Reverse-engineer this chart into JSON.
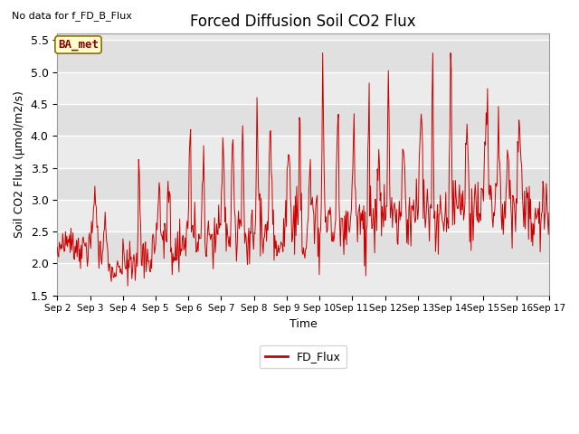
{
  "title": "Forced Diffusion Soil CO2 Flux",
  "ylabel": "Soil CO2 Flux (μmol/m2/s)",
  "xlabel": "Time",
  "no_data_label": "No data for f_FD_B_Flux",
  "site_label": "BA_met",
  "ylim": [
    1.5,
    5.6
  ],
  "legend_label": "FD_Flux",
  "line_color": "#cc0000",
  "bg_color": "#e8e8e8",
  "x_tick_labels": [
    "Sep 2",
    "Sep 3",
    "Sep 4",
    "Sep 5",
    "Sep 6",
    "Sep 7",
    "Sep 8",
    "Sep 9",
    "Sep 10",
    "Sep 11",
    "Sep 12",
    "Sep 13",
    "Sep 14",
    "Sep 15",
    "Sep 16",
    "Sep 17"
  ],
  "figsize": [
    6.4,
    4.8
  ],
  "dpi": 100
}
